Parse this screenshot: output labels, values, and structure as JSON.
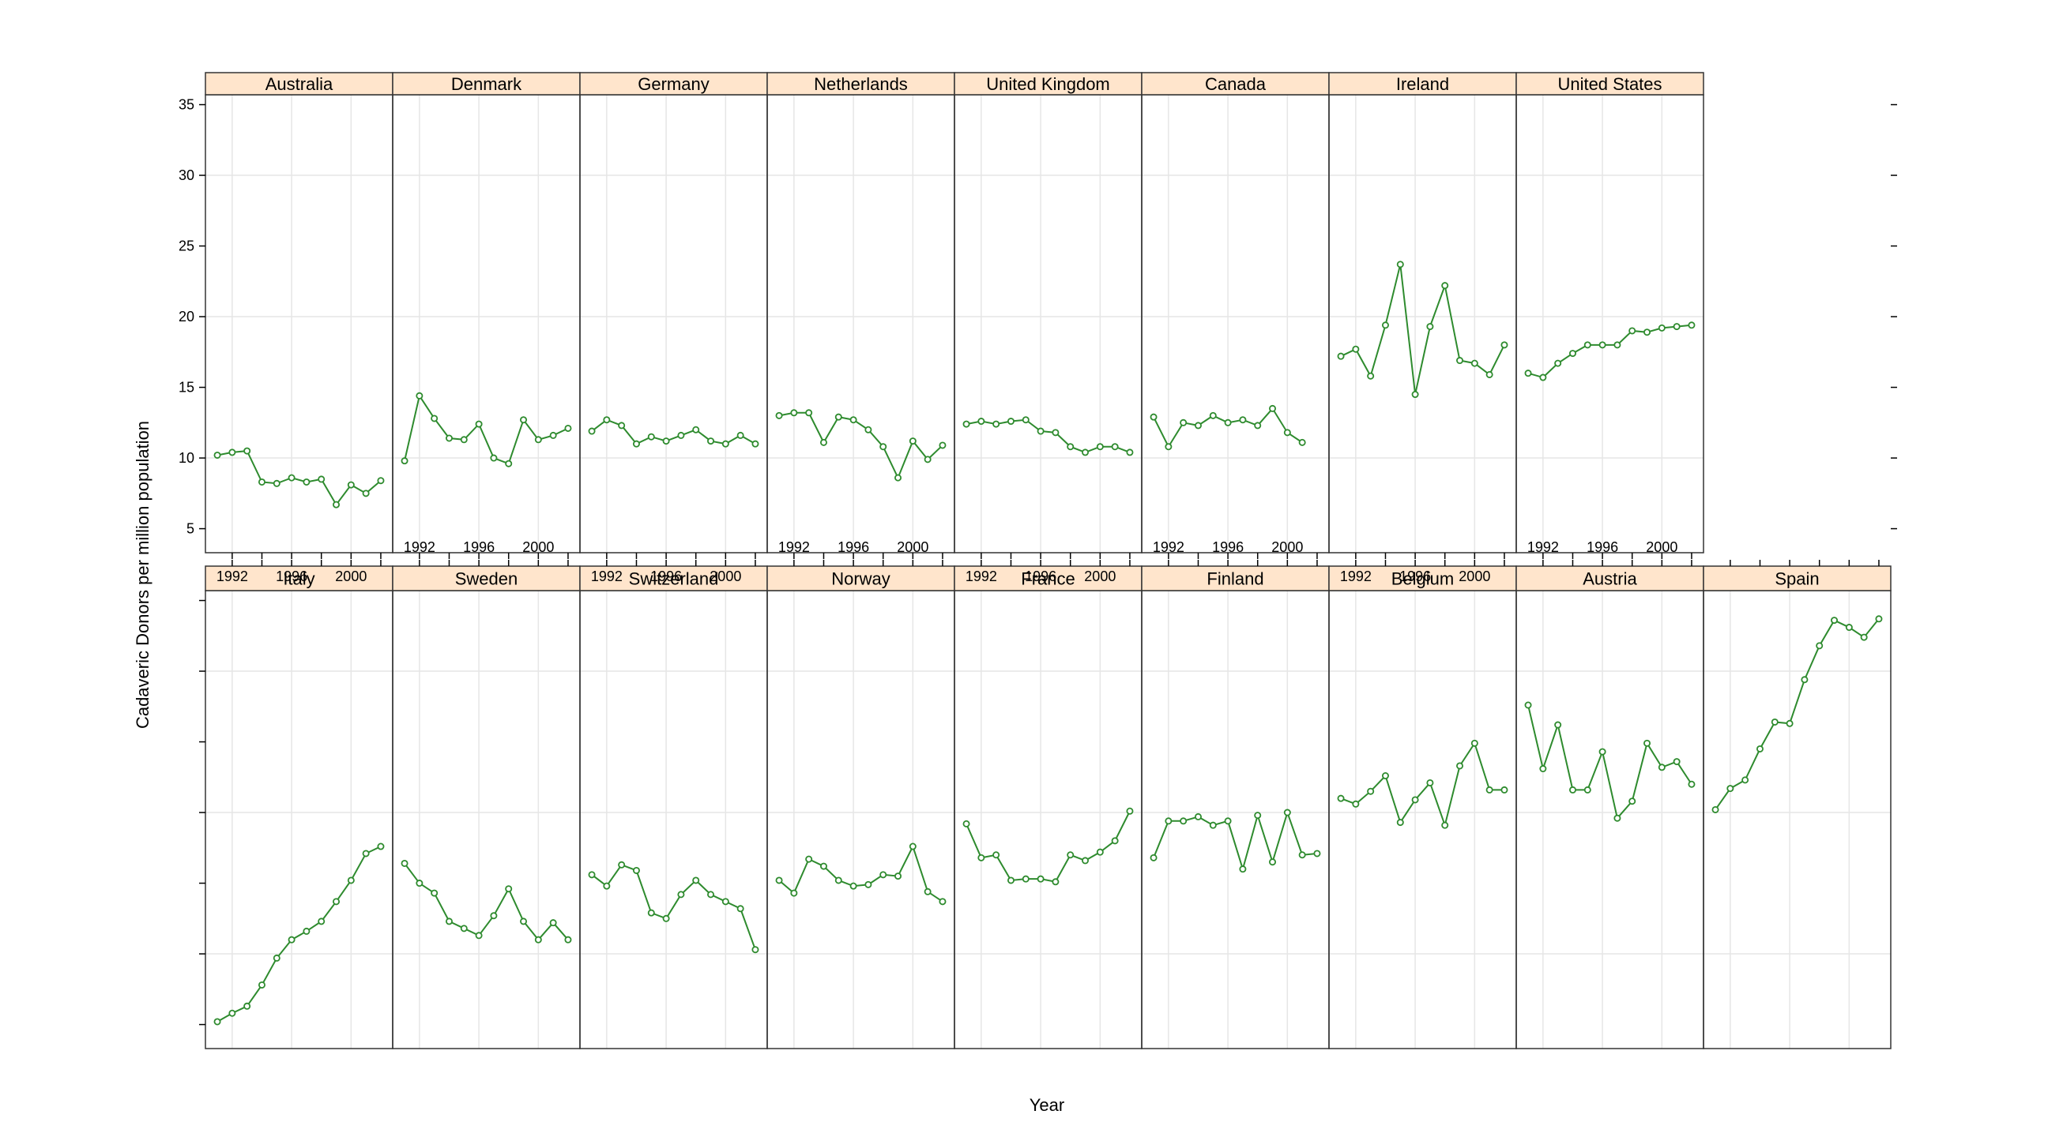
{
  "chart_data": {
    "type": "line",
    "layout": "trellis",
    "xlabel": "Year",
    "ylabel": "Cadaveric Donors per million population",
    "ylim": [
      3.3,
      35.7
    ],
    "xlim": [
      1990.2,
      2002.8
    ],
    "yticks": [
      5,
      10,
      15,
      20,
      25,
      30,
      35
    ],
    "xticks": [
      1992,
      1996,
      2000
    ],
    "grid": true,
    "colors": {
      "line": "#2e8b2e",
      "point": "#2e8b2e",
      "strip_bg": "#ffe5cc",
      "grid": "#e6e6e6",
      "border": "#000000"
    },
    "years": [
      1991,
      1992,
      1993,
      1994,
      1995,
      1996,
      1997,
      1998,
      1999,
      2000,
      2001,
      2002
    ],
    "panels": [
      {
        "name": "Italy",
        "values": [
          5.2,
          5.8,
          6.3,
          7.8,
          9.7,
          11.0,
          11.6,
          12.3,
          13.7,
          15.2,
          17.1,
          17.6
        ]
      },
      {
        "name": "Sweden",
        "values": [
          16.4,
          15.0,
          14.3,
          12.3,
          11.8,
          11.3,
          12.7,
          14.6,
          12.3,
          11.0,
          12.2,
          11.0
        ]
      },
      {
        "name": "Switzerland",
        "values": [
          15.6,
          14.8,
          16.3,
          15.9,
          12.9,
          12.5,
          14.2,
          15.2,
          14.2,
          13.7,
          13.2,
          10.3
        ]
      },
      {
        "name": "Norway",
        "values": [
          15.2,
          14.3,
          16.7,
          16.2,
          15.2,
          14.8,
          14.9,
          15.6,
          15.5,
          17.6,
          14.4,
          13.7
        ]
      },
      {
        "name": "France",
        "values": [
          19.2,
          16.8,
          17.0,
          15.2,
          15.3,
          15.3,
          15.1,
          17.0,
          16.6,
          17.2,
          18.0,
          20.1
        ]
      },
      {
        "name": "Finland",
        "values": [
          16.8,
          19.4,
          19.4,
          19.7,
          19.1,
          19.4,
          16.0,
          19.8,
          16.5,
          20.0,
          17.0,
          17.1
        ]
      },
      {
        "name": "Belgium",
        "values": [
          21.0,
          20.6,
          21.5,
          22.6,
          19.3,
          20.9,
          22.1,
          19.1,
          23.3,
          24.9,
          21.6,
          21.6
        ]
      },
      {
        "name": "Austria",
        "values": [
          27.6,
          23.1,
          26.2,
          21.6,
          21.6,
          24.3,
          19.6,
          20.8,
          24.9,
          23.2,
          23.6,
          22.0
        ]
      },
      {
        "name": "Spain",
        "values": [
          20.2,
          21.7,
          22.3,
          24.5,
          26.4,
          26.3,
          29.4,
          31.8,
          33.6,
          33.1,
          32.4,
          33.7
        ]
      },
      {
        "name": "Australia",
        "values": [
          10.2,
          10.4,
          10.5,
          8.3,
          8.2,
          8.6,
          8.3,
          8.5,
          6.7,
          8.1,
          7.5,
          8.4
        ]
      },
      {
        "name": "Denmark",
        "values": [
          9.8,
          14.4,
          12.8,
          11.4,
          11.3,
          12.4,
          10.0,
          9.6,
          12.7,
          11.3,
          11.6,
          12.1
        ]
      },
      {
        "name": "Germany",
        "values": [
          11.9,
          12.7,
          12.3,
          11.0,
          11.5,
          11.2,
          11.6,
          12.0,
          11.2,
          11.0,
          11.6,
          11.0
        ]
      },
      {
        "name": "Netherlands",
        "values": [
          13.0,
          13.2,
          13.2,
          11.1,
          12.9,
          12.7,
          12.0,
          10.8,
          8.6,
          11.2,
          9.9,
          10.9
        ]
      },
      {
        "name": "United Kingdom",
        "values": [
          12.4,
          12.6,
          12.4,
          12.6,
          12.7,
          11.9,
          11.8,
          10.8,
          10.4,
          10.8,
          10.8,
          10.4
        ]
      },
      {
        "name": "Canada",
        "values": [
          12.9,
          10.8,
          12.5,
          12.3,
          13.0,
          12.5,
          12.7,
          12.3,
          13.5,
          11.8,
          11.1,
          null
        ]
      },
      {
        "name": "Ireland",
        "values": [
          17.2,
          17.7,
          15.8,
          19.4,
          23.7,
          14.5,
          19.3,
          22.2,
          16.9,
          16.7,
          15.9,
          18.0
        ]
      },
      {
        "name": "United States",
        "values": [
          16.0,
          15.7,
          16.7,
          17.4,
          18.0,
          18.0,
          18.0,
          19.0,
          18.9,
          19.2,
          19.3,
          19.4
        ]
      }
    ]
  }
}
